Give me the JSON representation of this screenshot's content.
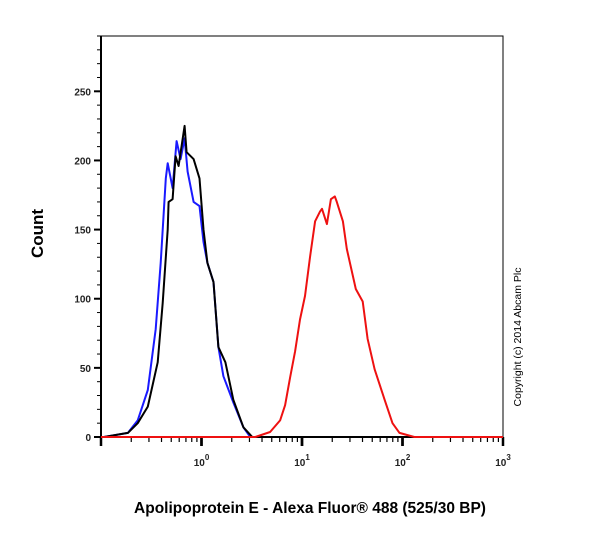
{
  "chart_data": {
    "type": "line",
    "title": "",
    "xlabel": "Apolipoprotein E - Alexa Fluor® 488 (525/30 BP)",
    "ylabel": "Count",
    "xscale": "log",
    "xlim": [
      0.1,
      1000
    ],
    "ylim": [
      0,
      290
    ],
    "yticks": [
      0,
      50,
      100,
      150,
      200,
      250
    ],
    "xtick_labels": [
      {
        "base": "10",
        "exp": "0",
        "value": 1
      },
      {
        "base": "10",
        "exp": "1",
        "value": 10
      },
      {
        "base": "10",
        "exp": "2",
        "value": 100
      },
      {
        "base": "10",
        "exp": "3",
        "value": 1000
      }
    ],
    "grid": false,
    "annotation": "Copyright (c) 2014 Abcam Plc",
    "series": [
      {
        "color": "#1a1aff",
        "x": [
          0.107,
          0.185,
          0.232,
          0.292,
          0.35,
          0.393,
          0.441,
          0.461,
          0.516,
          0.565,
          0.62,
          0.679,
          0.727,
          0.834,
          0.955,
          1.047,
          1.146,
          1.315,
          1.473,
          1.651,
          2.07,
          2.61,
          3.06,
          1000
        ],
        "y": [
          0,
          3,
          12,
          34,
          78,
          126,
          187,
          198,
          180,
          214,
          201,
          216,
          192,
          170,
          167,
          141,
          126,
          112,
          65,
          44,
          25,
          7,
          0,
          0
        ]
      },
      {
        "color": "#000000",
        "x": [
          0.107,
          0.185,
          0.232,
          0.292,
          0.367,
          0.411,
          0.461,
          0.471,
          0.516,
          0.553,
          0.592,
          0.679,
          0.71,
          0.834,
          0.955,
          1.047,
          1.146,
          1.315,
          1.473,
          1.728,
          2.07,
          2.61,
          3.2,
          1000
        ],
        "y": [
          0,
          3,
          10,
          22,
          54,
          97,
          150,
          170,
          172,
          203,
          196,
          225,
          206,
          201,
          187,
          150,
          126,
          112,
          65,
          54,
          27,
          7,
          0,
          0
        ]
      },
      {
        "color": "#ee1111",
        "x": [
          0.1,
          3.43,
          4.82,
          6.05,
          6.79,
          7.61,
          8.53,
          9.55,
          10.7,
          12.0,
          13.5,
          15.1,
          15.8,
          17.7,
          19.4,
          21.2,
          22.2,
          25.5,
          27.9,
          34.3,
          40.2,
          45.0,
          52.8,
          66.4,
          79.6,
          93.4,
          131,
          1000
        ],
        "y": [
          0,
          0,
          3.6,
          12,
          23,
          43,
          62,
          85,
          102,
          130,
          156,
          163,
          165,
          154,
          172,
          174,
          170,
          156,
          136,
          107,
          98,
          71,
          49,
          27,
          10,
          3,
          0,
          0
        ]
      }
    ]
  }
}
